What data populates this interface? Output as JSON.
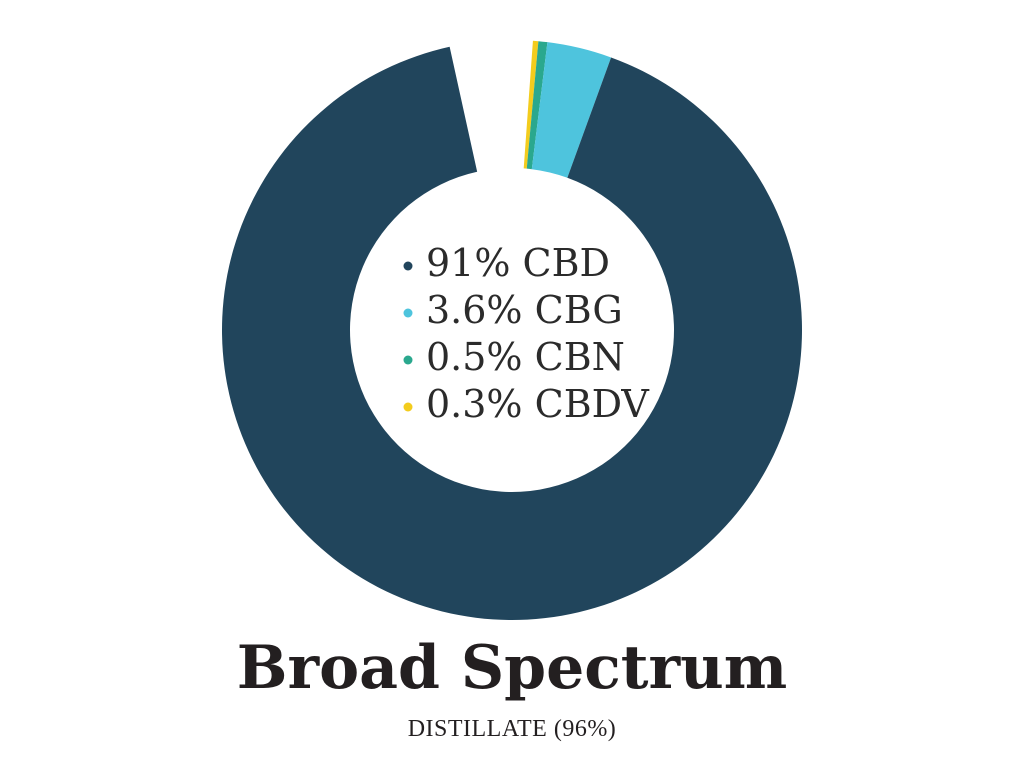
{
  "chart_data": {
    "type": "pie",
    "variant": "donut",
    "title": "Broad Spectrum",
    "subtitle": "DISTILLATE (96%)",
    "unit": "%",
    "legend_placement": "center",
    "slices": [
      {
        "label": "91% CBD",
        "name": "CBD",
        "value": 91,
        "color": "#21455c"
      },
      {
        "label": "3.6% CBG",
        "name": "CBG",
        "value": 3.6,
        "color": "#4ec4dd"
      },
      {
        "label": "0.5% CBN",
        "name": "CBN",
        "value": 0.5,
        "color": "#2aa88e"
      },
      {
        "label": "0.3% CBDV",
        "name": "CBDV",
        "value": 0.3,
        "color": "#f3cc1d"
      }
    ],
    "remainder": {
      "value": 4.6,
      "color": "#ffffff"
    }
  }
}
